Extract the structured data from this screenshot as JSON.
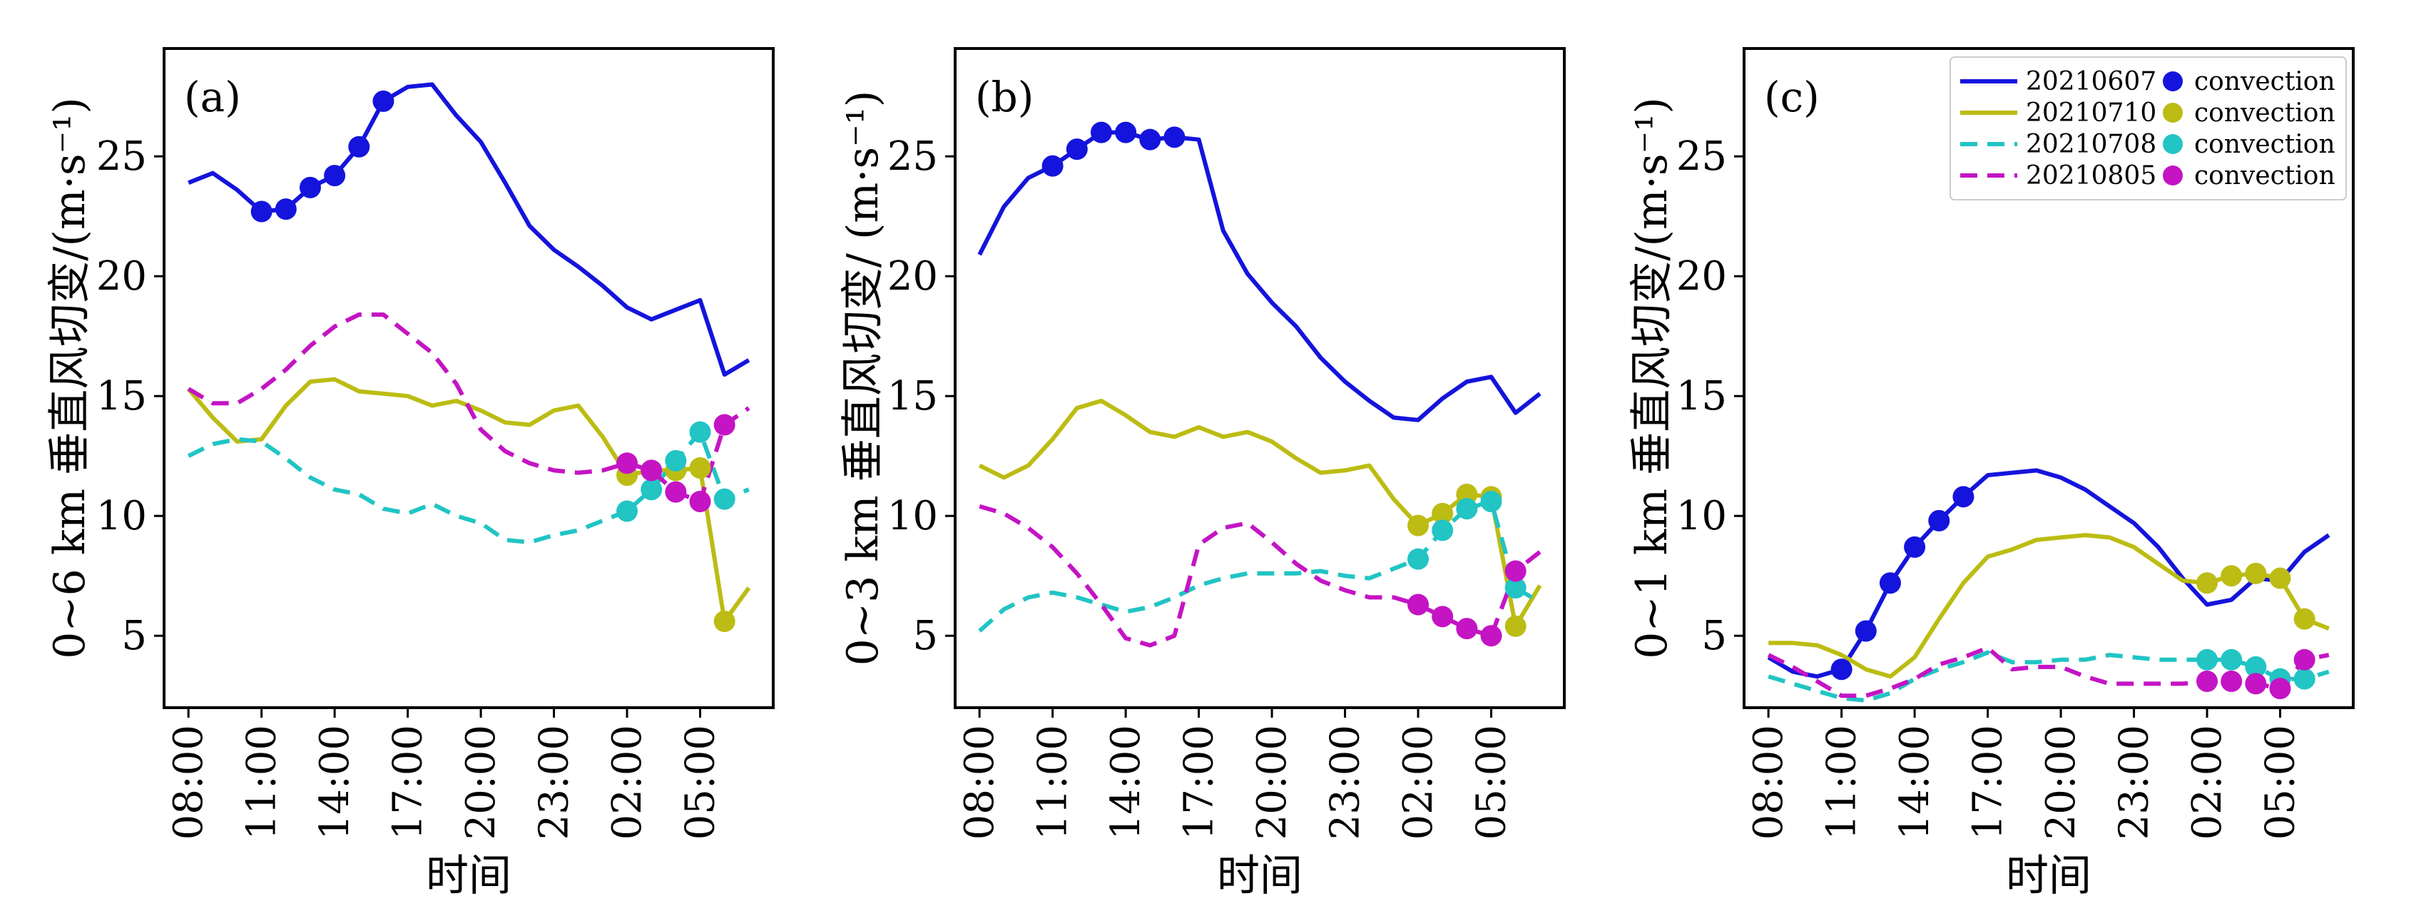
{
  "colors": {
    "20210607": "#1414dc",
    "20210710": "#bcbc14",
    "20210708": "#22c4c4",
    "20210805": "#c414c4"
  },
  "legend": {
    "entries": [
      {
        "series": "20210607",
        "label": "20210607",
        "marker_label": "convection",
        "dashed": false
      },
      {
        "series": "20210710",
        "label": "20210710",
        "marker_label": "convection",
        "dashed": false
      },
      {
        "series": "20210708",
        "label": "20210708",
        "marker_label": "convection",
        "dashed": true
      },
      {
        "series": "20210805",
        "label": "20210805",
        "marker_label": "convection",
        "dashed": true
      }
    ],
    "placement": "top-right of panel (c)"
  },
  "chart_data": [
    {
      "type": "line",
      "panel_label": "(a)",
      "xlabel": "时间",
      "ylabel": "0~6 km 垂直风切变/(m·s⁻¹)",
      "x_tick_labels": [
        "08:00",
        "11:00",
        "14:00",
        "17:00",
        "20:00",
        "23:00",
        "02:00",
        "05:00"
      ],
      "x_tick_hours": [
        0,
        3,
        6,
        9,
        12,
        15,
        18,
        21
      ],
      "y_ticks": [
        5,
        10,
        15,
        20,
        25
      ],
      "xlim": [
        -1,
        24
      ],
      "ylim": [
        2,
        29.5
      ],
      "series": [
        {
          "id": "20210607",
          "name": "20210607",
          "dashed": false,
          "x": [
            0,
            1,
            2,
            3,
            4,
            5,
            6,
            7,
            8,
            9,
            10,
            11,
            12,
            13,
            14,
            15,
            16,
            17,
            18,
            19,
            20,
            21,
            22,
            23
          ],
          "y": [
            23.9,
            24.3,
            23.6,
            22.7,
            22.8,
            23.7,
            24.2,
            25.4,
            27.3,
            27.9,
            28.0,
            26.7,
            25.6,
            23.9,
            22.1,
            21.1,
            20.4,
            19.6,
            18.7,
            18.2,
            18.6,
            19.0,
            15.9,
            16.5
          ],
          "markers": [
            3,
            4,
            5,
            6,
            7,
            8
          ]
        },
        {
          "id": "20210710",
          "name": "20210710",
          "dashed": false,
          "x": [
            0,
            1,
            2,
            3,
            4,
            5,
            6,
            7,
            8,
            9,
            10,
            11,
            12,
            13,
            14,
            15,
            16,
            17,
            18,
            19,
            20,
            21,
            22,
            23
          ],
          "y": [
            15.3,
            14.1,
            13.1,
            13.2,
            14.6,
            15.6,
            15.7,
            15.2,
            15.1,
            15.0,
            14.6,
            14.8,
            14.4,
            13.9,
            13.8,
            14.4,
            14.6,
            13.3,
            11.7,
            11.9,
            11.9,
            12.0,
            5.6,
            7.0
          ],
          "markers": [
            18,
            19,
            20,
            21,
            22
          ]
        },
        {
          "id": "20210708",
          "name": "20210708",
          "dashed": true,
          "x": [
            0,
            1,
            2,
            3,
            4,
            5,
            6,
            7,
            8,
            9,
            10,
            11,
            12,
            13,
            14,
            15,
            16,
            17,
            18,
            19,
            20,
            21,
            22,
            23
          ],
          "y": [
            12.5,
            13.0,
            13.2,
            13.1,
            12.4,
            11.6,
            11.1,
            10.9,
            10.3,
            10.1,
            10.5,
            10.0,
            9.7,
            9.0,
            8.9,
            9.2,
            9.4,
            9.8,
            10.2,
            11.1,
            12.3,
            13.5,
            10.7,
            11.1
          ],
          "markers": [
            18,
            19,
            20,
            21,
            22
          ]
        },
        {
          "id": "20210805",
          "name": "20210805",
          "dashed": true,
          "x": [
            0,
            1,
            2,
            3,
            4,
            5,
            6,
            7,
            8,
            9,
            10,
            11,
            12,
            13,
            14,
            15,
            16,
            17,
            18,
            19,
            20,
            21,
            22,
            23
          ],
          "y": [
            15.3,
            14.7,
            14.7,
            15.3,
            16.1,
            17.1,
            17.9,
            18.4,
            18.4,
            17.6,
            16.8,
            15.5,
            13.6,
            12.7,
            12.2,
            11.9,
            11.8,
            11.9,
            12.2,
            11.9,
            11.0,
            10.6,
            13.8,
            14.5
          ],
          "markers": [
            18,
            19,
            20,
            21,
            22
          ]
        }
      ]
    },
    {
      "type": "line",
      "panel_label": "(b)",
      "xlabel": "时间",
      "ylabel": "0~3 km 垂直风切变/ (m·s⁻¹)",
      "x_tick_labels": [
        "08:00",
        "11:00",
        "14:00",
        "17:00",
        "20:00",
        "23:00",
        "02:00",
        "05:00"
      ],
      "x_tick_hours": [
        0,
        3,
        6,
        9,
        12,
        15,
        18,
        21
      ],
      "y_ticks": [
        5,
        10,
        15,
        20,
        25
      ],
      "xlim": [
        -1,
        24
      ],
      "ylim": [
        2,
        29.5
      ],
      "series": [
        {
          "id": "20210607",
          "name": "20210607",
          "dashed": false,
          "x": [
            0,
            1,
            2,
            3,
            4,
            5,
            6,
            7,
            8,
            9,
            10,
            11,
            12,
            13,
            14,
            15,
            16,
            17,
            18,
            19,
            20,
            21,
            22,
            23
          ],
          "y": [
            20.9,
            22.9,
            24.1,
            24.6,
            25.3,
            26.0,
            26.0,
            25.7,
            25.8,
            25.7,
            21.9,
            20.1,
            18.9,
            17.9,
            16.6,
            15.6,
            14.8,
            14.1,
            14.0,
            14.9,
            15.6,
            15.8,
            14.3,
            15.1
          ],
          "markers": [
            3,
            4,
            5,
            6,
            7,
            8
          ]
        },
        {
          "id": "20210710",
          "name": "20210710",
          "dashed": false,
          "x": [
            0,
            1,
            2,
            3,
            4,
            5,
            6,
            7,
            8,
            9,
            10,
            11,
            12,
            13,
            14,
            15,
            16,
            17,
            18,
            19,
            20,
            21,
            22,
            23
          ],
          "y": [
            12.1,
            11.6,
            12.1,
            13.2,
            14.5,
            14.8,
            14.2,
            13.5,
            13.3,
            13.7,
            13.3,
            13.5,
            13.1,
            12.4,
            11.8,
            11.9,
            12.1,
            10.7,
            9.6,
            10.1,
            10.9,
            10.8,
            5.4,
            7.1
          ],
          "markers": [
            18,
            19,
            20,
            21,
            22
          ]
        },
        {
          "id": "20210708",
          "name": "20210708",
          "dashed": true,
          "x": [
            0,
            1,
            2,
            3,
            4,
            5,
            6,
            7,
            8,
            9,
            10,
            11,
            12,
            13,
            14,
            15,
            16,
            17,
            18,
            19,
            20,
            21,
            22,
            23
          ],
          "y": [
            5.2,
            6.1,
            6.6,
            6.8,
            6.6,
            6.3,
            6.0,
            6.2,
            6.6,
            7.1,
            7.4,
            7.6,
            7.6,
            7.6,
            7.7,
            7.5,
            7.4,
            7.8,
            8.2,
            9.4,
            10.3,
            10.6,
            7.0,
            6.4
          ],
          "markers": [
            18,
            19,
            20,
            21,
            22
          ]
        },
        {
          "id": "20210805",
          "name": "20210805",
          "dashed": true,
          "x": [
            0,
            1,
            2,
            3,
            4,
            5,
            6,
            7,
            8,
            9,
            10,
            11,
            12,
            13,
            14,
            15,
            16,
            17,
            18,
            19,
            20,
            21,
            22,
            23
          ],
          "y": [
            10.4,
            10.1,
            9.5,
            8.7,
            7.6,
            6.3,
            4.9,
            4.6,
            5.0,
            8.8,
            9.5,
            9.7,
            8.9,
            8.0,
            7.3,
            6.9,
            6.6,
            6.6,
            6.3,
            5.8,
            5.3,
            5.0,
            7.7,
            8.5
          ],
          "markers": [
            18,
            19,
            20,
            21,
            22
          ]
        }
      ]
    },
    {
      "type": "line",
      "panel_label": "(c)",
      "xlabel": "时间",
      "ylabel": "0~1 km 垂直风切变/(m·s⁻¹)",
      "x_tick_labels": [
        "08:00",
        "11:00",
        "14:00",
        "17:00",
        "20:00",
        "23:00",
        "02:00",
        "05:00"
      ],
      "x_tick_hours": [
        0,
        3,
        6,
        9,
        12,
        15,
        18,
        21
      ],
      "y_ticks": [
        5,
        10,
        15,
        20,
        25
      ],
      "xlim": [
        -1,
        24
      ],
      "ylim": [
        2,
        29.5
      ],
      "series": [
        {
          "id": "20210607",
          "name": "20210607",
          "dashed": false,
          "x": [
            0,
            1,
            2,
            3,
            4,
            5,
            6,
            7,
            8,
            9,
            10,
            11,
            12,
            13,
            14,
            15,
            16,
            17,
            18,
            19,
            20,
            21,
            22,
            23
          ],
          "y": [
            4.1,
            3.5,
            3.3,
            3.6,
            5.2,
            7.2,
            8.7,
            9.8,
            10.8,
            11.7,
            11.8,
            11.9,
            11.6,
            11.1,
            10.4,
            9.7,
            8.7,
            7.4,
            6.3,
            6.5,
            7.4,
            7.3,
            8.5,
            9.2
          ],
          "markers": [
            3,
            4,
            5,
            6,
            7,
            8
          ]
        },
        {
          "id": "20210710",
          "name": "20210710",
          "dashed": false,
          "x": [
            0,
            1,
            2,
            3,
            4,
            5,
            6,
            7,
            8,
            9,
            10,
            11,
            12,
            13,
            14,
            15,
            16,
            17,
            18,
            19,
            20,
            21,
            22,
            23
          ],
          "y": [
            4.7,
            4.7,
            4.6,
            4.2,
            3.6,
            3.3,
            4.1,
            5.7,
            7.2,
            8.3,
            8.6,
            9.0,
            9.1,
            9.2,
            9.1,
            8.7,
            8.0,
            7.3,
            7.2,
            7.5,
            7.6,
            7.4,
            5.7,
            5.3
          ],
          "markers": [
            18,
            19,
            20,
            21,
            22
          ]
        },
        {
          "id": "20210708",
          "name": "20210708",
          "dashed": true,
          "x": [
            0,
            1,
            2,
            3,
            4,
            5,
            6,
            7,
            8,
            9,
            10,
            11,
            12,
            13,
            14,
            15,
            16,
            17,
            18,
            19,
            20,
            21,
            22,
            23
          ],
          "y": [
            3.3,
            3.0,
            2.7,
            2.4,
            2.3,
            2.6,
            3.2,
            3.6,
            3.9,
            4.3,
            3.9,
            3.9,
            4.0,
            4.0,
            4.2,
            4.1,
            4.0,
            4.0,
            4.0,
            4.0,
            3.7,
            3.2,
            3.2,
            3.5
          ],
          "markers": [
            18,
            19,
            20,
            21,
            22
          ]
        },
        {
          "id": "20210805",
          "name": "20210805",
          "dashed": true,
          "x": [
            0,
            1,
            2,
            3,
            4,
            5,
            6,
            7,
            8,
            9,
            10,
            11,
            12,
            13,
            14,
            15,
            16,
            17,
            18,
            19,
            20,
            21,
            22,
            23
          ],
          "y": [
            4.2,
            3.7,
            3.1,
            2.5,
            2.5,
            2.8,
            3.2,
            3.8,
            4.1,
            4.5,
            3.6,
            3.7,
            3.7,
            3.3,
            3.0,
            3.0,
            3.0,
            3.0,
            3.1,
            3.1,
            3.0,
            2.8,
            4.0,
            4.2
          ],
          "markers": [
            18,
            19,
            20,
            21,
            22
          ]
        }
      ]
    }
  ]
}
